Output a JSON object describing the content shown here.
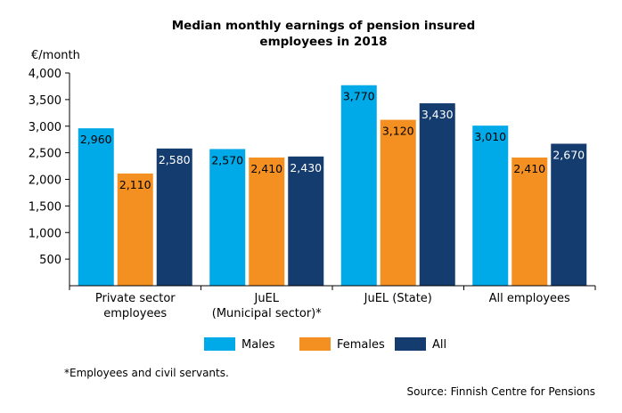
{
  "chart_data": {
    "type": "bar",
    "title_line1": "Median monthly earnings of pension insured",
    "title_line2": "employees in 2018",
    "ylabel": "€/month",
    "xlabel": "",
    "ylim": [
      0,
      4000
    ],
    "yticks": [
      500,
      1000,
      1500,
      2000,
      2500,
      3000,
      3500,
      4000
    ],
    "ytick_labels": [
      "500",
      "1,000",
      "1,500",
      "2,000",
      "2,500",
      "3,000",
      "3,500",
      "4,000"
    ],
    "grid": false,
    "legend_position": "bottom",
    "categories": [
      [
        "Private sector",
        "employees"
      ],
      [
        "JuEL",
        "(Municipal sector)*"
      ],
      [
        "JuEL (State)"
      ],
      [
        "All employees"
      ]
    ],
    "series": [
      {
        "name": "Males",
        "color": "#00a9e8",
        "values": [
          2960,
          2570,
          3770,
          3010
        ],
        "labels": [
          "2,960",
          "2,570",
          "3,770",
          "3,010"
        ]
      },
      {
        "name": "Females",
        "color": "#f39021",
        "values": [
          2110,
          2410,
          3120,
          2410
        ],
        "labels": [
          "2,110",
          "2,410",
          "3,120",
          "2,410"
        ]
      },
      {
        "name": "All",
        "color": "#143c6e",
        "values": [
          2580,
          2430,
          3430,
          2670
        ],
        "labels": [
          "2,580",
          "2,430",
          "3,430",
          "2,670"
        ]
      }
    ],
    "footnote": "*Employees and civil servants.",
    "source": "Source: Finnish Centre for Pensions"
  }
}
